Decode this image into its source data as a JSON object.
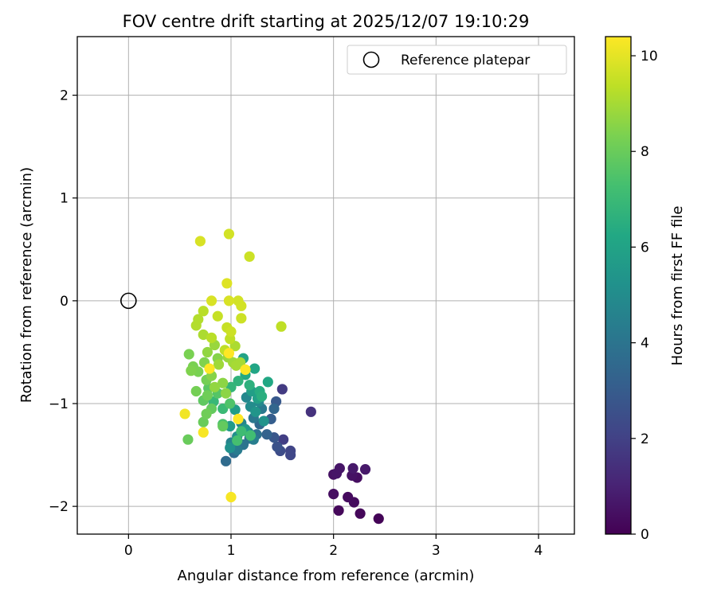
{
  "chart_data": {
    "type": "scatter",
    "title": "FOV centre drift starting at 2025/12/07 19:10:29",
    "xlabel": "Angular distance from reference (arcmin)",
    "ylabel": "Rotation from reference (arcmin)",
    "xlim": [
      -0.5,
      4.35
    ],
    "ylim": [
      -2.27,
      2.57
    ],
    "xticks": [
      0,
      1,
      2,
      3,
      4
    ],
    "yticks": [
      -2,
      -1,
      0,
      1,
      2
    ],
    "xtick_labels": [
      "0",
      "1",
      "2",
      "3",
      "4"
    ],
    "ytick_labels": [
      "−2",
      "−1",
      "0",
      "1",
      "2"
    ],
    "grid": true,
    "legend": {
      "location": "top-right",
      "entries": [
        {
          "label": "Reference platepar",
          "marker": "open-circle"
        }
      ]
    },
    "reference_point": {
      "x": 0,
      "y": 0
    },
    "colorbar": {
      "label": "Hours from first FF file",
      "colormap": "viridis",
      "range": [
        0,
        10.4
      ],
      "ticks": [
        0,
        2,
        4,
        6,
        8,
        10
      ],
      "tick_labels": [
        "0",
        "2",
        "4",
        "6",
        "8",
        "10"
      ]
    },
    "series": [
      {
        "name": "FOV centre drift",
        "points": [
          [
            2.44,
            -2.12,
            0.1
          ],
          [
            2.26,
            -2.07,
            0.2
          ],
          [
            2.05,
            -2.04,
            0.2
          ],
          [
            2.2,
            -1.96,
            0.3
          ],
          [
            2.14,
            -1.91,
            0.3
          ],
          [
            2.0,
            -1.88,
            0.4
          ],
          [
            2.23,
            -1.72,
            0.4
          ],
          [
            2.18,
            -1.7,
            0.5
          ],
          [
            2.0,
            -1.69,
            0.5
          ],
          [
            2.03,
            -1.68,
            0.6
          ],
          [
            2.06,
            -1.63,
            0.6
          ],
          [
            2.19,
            -1.63,
            0.7
          ],
          [
            2.31,
            -1.64,
            0.7
          ],
          [
            1.78,
            -1.08,
            1.5
          ],
          [
            1.5,
            -0.86,
            1.8
          ],
          [
            1.51,
            -1.35,
            1.9
          ],
          [
            1.58,
            -1.46,
            2.1
          ],
          [
            1.58,
            -1.5,
            2.2
          ],
          [
            1.48,
            -1.46,
            2.4
          ],
          [
            1.45,
            -1.42,
            2.6
          ],
          [
            1.42,
            -1.33,
            2.8
          ],
          [
            1.44,
            -0.98,
            2.9
          ],
          [
            1.39,
            -1.15,
            3.1
          ],
          [
            1.35,
            -1.3,
            3.3
          ],
          [
            1.42,
            -1.05,
            3.4
          ],
          [
            1.28,
            -1.2,
            3.5
          ],
          [
            0.95,
            -1.56,
            3.6
          ],
          [
            1.03,
            -1.48,
            3.7
          ],
          [
            1.18,
            -1.34,
            3.8
          ],
          [
            1.25,
            -1.3,
            3.9
          ],
          [
            1.12,
            -1.4,
            4.0
          ],
          [
            1.22,
            -1.14,
            4.1
          ],
          [
            1.3,
            -1.05,
            4.2
          ],
          [
            1.06,
            -1.45,
            4.3
          ],
          [
            1.22,
            -1.35,
            4.4
          ],
          [
            1.17,
            -1.28,
            4.5
          ],
          [
            1.0,
            -1.38,
            4.6
          ],
          [
            1.1,
            -1.19,
            4.7
          ],
          [
            1.15,
            -0.94,
            4.8
          ],
          [
            1.27,
            -0.98,
            4.9
          ],
          [
            1.19,
            -1.03,
            5.0
          ],
          [
            1.06,
            -1.32,
            5.1
          ],
          [
            0.99,
            -1.43,
            5.2
          ],
          [
            1.32,
            -1.17,
            5.3
          ],
          [
            1.24,
            -1.08,
            5.4
          ],
          [
            1.14,
            -1.25,
            5.5
          ],
          [
            0.99,
            -1.22,
            5.6
          ],
          [
            1.04,
            -1.06,
            5.7
          ],
          [
            1.2,
            -0.88,
            5.8
          ],
          [
            1.26,
            -0.95,
            5.9
          ],
          [
            1.12,
            -0.56,
            6.0
          ],
          [
            1.23,
            -0.66,
            6.1
          ],
          [
            1.36,
            -0.79,
            6.2
          ],
          [
            1.14,
            -0.72,
            6.3
          ],
          [
            1.28,
            -0.88,
            6.4
          ],
          [
            1.3,
            -0.93,
            6.5
          ],
          [
            1.18,
            -0.82,
            6.6
          ],
          [
            1.07,
            -0.78,
            6.7
          ],
          [
            1.0,
            -0.84,
            6.8
          ],
          [
            0.83,
            -0.98,
            6.9
          ],
          [
            0.92,
            -1.05,
            7.0
          ],
          [
            1.1,
            -1.27,
            7.1
          ],
          [
            1.19,
            -1.31,
            7.2
          ],
          [
            1.06,
            -1.36,
            7.3
          ],
          [
            0.92,
            -1.2,
            7.4
          ],
          [
            0.99,
            -1.0,
            7.5
          ],
          [
            0.87,
            -0.9,
            7.6
          ],
          [
            0.78,
            -0.85,
            7.7
          ],
          [
            0.73,
            -0.97,
            7.8
          ],
          [
            0.81,
            -1.05,
            7.9
          ],
          [
            0.92,
            -1.22,
            7.9
          ],
          [
            0.58,
            -1.35,
            8.0
          ],
          [
            0.73,
            -1.18,
            8.0
          ],
          [
            0.76,
            -1.1,
            8.1
          ],
          [
            0.77,
            -0.92,
            8.1
          ],
          [
            0.76,
            -0.77,
            8.2
          ],
          [
            0.66,
            -0.88,
            8.2
          ],
          [
            0.68,
            -0.69,
            8.3
          ],
          [
            0.63,
            -0.64,
            8.3
          ],
          [
            0.59,
            -0.52,
            8.3
          ],
          [
            0.61,
            -0.68,
            8.4
          ],
          [
            0.74,
            -0.6,
            8.4
          ],
          [
            0.87,
            -0.56,
            8.5
          ],
          [
            0.81,
            -0.73,
            8.5
          ],
          [
            0.92,
            -0.8,
            8.6
          ],
          [
            0.95,
            -0.9,
            8.6
          ],
          [
            0.84,
            -0.84,
            8.7
          ],
          [
            0.77,
            -0.5,
            8.7
          ],
          [
            0.84,
            -0.43,
            8.8
          ],
          [
            0.97,
            -0.55,
            8.8
          ],
          [
            0.88,
            -0.62,
            8.9
          ],
          [
            1.02,
            -0.6,
            8.9
          ],
          [
            1.05,
            -0.63,
            9.0
          ],
          [
            1.09,
            -0.6,
            9.0
          ],
          [
            1.04,
            -0.44,
            9.1
          ],
          [
            0.73,
            -0.33,
            9.1
          ],
          [
            0.66,
            -0.24,
            9.2
          ],
          [
            0.68,
            -0.18,
            9.2
          ],
          [
            0.73,
            -0.1,
            9.3
          ],
          [
            0.81,
            -0.36,
            9.3
          ],
          [
            0.94,
            -0.48,
            9.4
          ],
          [
            0.99,
            -0.37,
            9.4
          ],
          [
            0.87,
            -0.15,
            9.5
          ],
          [
            0.96,
            -0.26,
            9.5
          ],
          [
            1.0,
            -0.3,
            9.6
          ],
          [
            1.1,
            -0.17,
            9.6
          ],
          [
            1.1,
            -0.05,
            9.7
          ],
          [
            1.07,
            0.0,
            9.7
          ],
          [
            0.98,
            0.0,
            9.8
          ],
          [
            0.81,
            0.0,
            9.8
          ],
          [
            0.96,
            0.17,
            9.9
          ],
          [
            1.49,
            -0.25,
            9.4
          ],
          [
            1.18,
            0.43,
            9.6
          ],
          [
            0.98,
            0.65,
            9.7
          ],
          [
            0.7,
            0.58,
            9.8
          ],
          [
            0.55,
            -1.1,
            10.2
          ],
          [
            0.73,
            -1.28,
            10.3
          ],
          [
            1.0,
            -1.91,
            10.3
          ],
          [
            1.07,
            -1.15,
            10.4
          ],
          [
            1.14,
            -0.67,
            10.4
          ],
          [
            0.98,
            -0.51,
            10.4
          ],
          [
            0.79,
            -0.66,
            10.4
          ]
        ]
      }
    ]
  }
}
